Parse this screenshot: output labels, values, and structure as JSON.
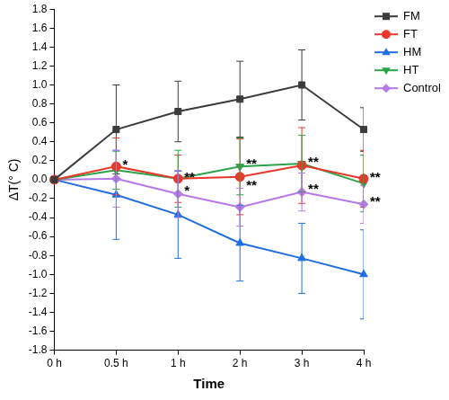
{
  "chart_data": {
    "type": "line",
    "x_label": "Time",
    "y_label": "ΔT(° C)",
    "categories": [
      "0 h",
      "0.5 h",
      "1 h",
      "2 h",
      "3 h",
      "4 h"
    ],
    "ylim": [
      -1.8,
      1.8
    ],
    "yticks": [
      -1.8,
      -1.6,
      -1.4,
      -1.2,
      {
        "value": -1,
        "label": "-1.0"
      },
      -0.8,
      -0.6,
      -0.4,
      -0.2,
      {
        "value": 0,
        "label": "0.0"
      },
      0.2,
      0.4,
      0.6,
      0.8,
      {
        "value": 1,
        "label": "1.0"
      },
      1.2,
      1.4,
      1.6,
      1.8
    ],
    "grid": false,
    "legend": "top-right",
    "series": [
      {
        "name": "FM",
        "color": "#3c3c3c",
        "marker": "square",
        "values": [
          0,
          0.53,
          0.72,
          0.85,
          1.0,
          0.53
        ],
        "errors": [
          0,
          0.47,
          0.32,
          0.4,
          0.37,
          0.23
        ]
      },
      {
        "name": "FT",
        "color": "#e8392b",
        "marker": "circle",
        "values": [
          0,
          0.14,
          0.01,
          0.03,
          0.15,
          0.01
        ],
        "errors": [
          0,
          0.3,
          0.25,
          0.4,
          0.4,
          0.3
        ]
      },
      {
        "name": "HM",
        "color": "#1f6fe0",
        "marker": "triangle-up",
        "values": [
          0,
          -0.16,
          -0.37,
          -0.67,
          -0.83,
          -1.0
        ],
        "errors": [
          0,
          0.47,
          0.46,
          0.4,
          0.37,
          0.47
        ]
      },
      {
        "name": "HT",
        "color": "#2ca44a",
        "marker": "triangle-down",
        "values": [
          0,
          0.1,
          0.01,
          0.14,
          0.17,
          -0.04
        ],
        "errors": [
          0,
          0.2,
          0.3,
          0.3,
          0.3,
          0.3
        ]
      },
      {
        "name": "Control",
        "color": "#b57ae8",
        "marker": "diamond",
        "values": [
          0,
          0.01,
          -0.15,
          -0.29,
          -0.13,
          -0.26
        ],
        "errors": [
          0,
          0.3,
          0.25,
          0.2,
          0.2,
          0.2
        ]
      }
    ],
    "annotations": [
      {
        "text": "*",
        "x": "0.5 h",
        "y": 0.15
      },
      {
        "text": "**",
        "x": "1 h",
        "y": 0.02
      },
      {
        "text": "*",
        "x": "1 h",
        "y": -0.12
      },
      {
        "text": "**",
        "x": "2 h",
        "y": 0.16
      },
      {
        "text": "**",
        "x": "2 h",
        "y": -0.07
      },
      {
        "text": "**",
        "x": "3 h",
        "y": 0.18
      },
      {
        "text": "**",
        "x": "3 h",
        "y": -0.1
      },
      {
        "text": "**",
        "x": "4 h",
        "y": 0.02
      },
      {
        "text": "**",
        "x": "4 h",
        "y": -0.24
      }
    ]
  }
}
